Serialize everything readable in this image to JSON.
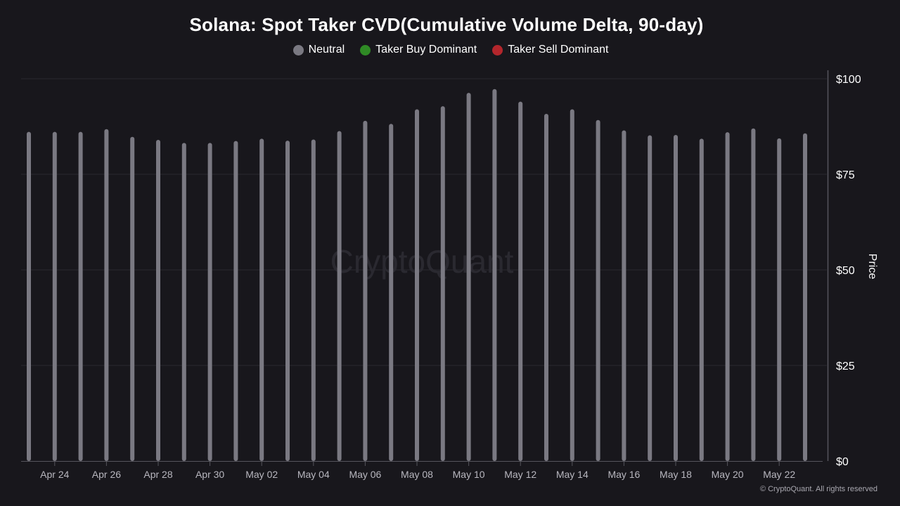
{
  "title": "Solana: Spot Taker CVD(Cumulative Volume Delta, 90-day)",
  "legend": [
    {
      "label": "Neutral",
      "color": "#7a7982"
    },
    {
      "label": "Taker Buy Dominant",
      "color": "#2f8a25"
    },
    {
      "label": "Taker Sell Dominant",
      "color": "#b3262c"
    }
  ],
  "watermark": "CryptoQuant",
  "copyright": "© CryptoQuant. All rights reserved",
  "colors": {
    "background": "#18171c",
    "bar": "#7a7982",
    "grid": "#2a2a31",
    "axis": "#55545c",
    "tick_text": "#b8b7bf"
  },
  "chart_data": {
    "type": "bar",
    "title": "Solana: Spot Taker CVD(Cumulative Volume Delta, 90-day)",
    "ylabel": "Price",
    "ylim": [
      0,
      100
    ],
    "y_ticks": [
      {
        "value": 0,
        "label": "$0"
      },
      {
        "value": 25,
        "label": "$25"
      },
      {
        "value": 50,
        "label": "$50"
      },
      {
        "value": 75,
        "label": "$75"
      },
      {
        "value": 100,
        "label": "$100"
      }
    ],
    "x_tick_labels": [
      "Apr 24",
      "Apr 26",
      "Apr 28",
      "Apr 30",
      "May 02",
      "May 04",
      "May 06",
      "May 08",
      "May 10",
      "May 12",
      "May 14",
      "May 16",
      "May 18",
      "May 20",
      "May 22"
    ],
    "grid": true,
    "legend_position": "top-center",
    "series": [
      {
        "name": "Neutral",
        "color": "#7a7982",
        "x": [
          "Apr 23",
          "Apr 24",
          "Apr 25",
          "Apr 26",
          "Apr 27",
          "Apr 28",
          "Apr 29",
          "Apr 30",
          "May 01",
          "May 02",
          "May 03",
          "May 04",
          "May 05",
          "May 06",
          "May 07",
          "May 08",
          "May 09",
          "May 10",
          "May 11",
          "May 12",
          "May 13",
          "May 14",
          "May 15",
          "May 16",
          "May 17",
          "May 18",
          "May 19",
          "May 20",
          "May 21",
          "May 22",
          "May 23"
        ],
        "values": [
          86.1,
          86.1,
          86.1,
          86.8,
          84.8,
          84.0,
          83.2,
          83.2,
          83.7,
          84.3,
          83.8,
          84.1,
          86.3,
          89.0,
          88.2,
          92.0,
          92.8,
          96.3,
          97.3,
          94.0,
          90.8,
          92.0,
          89.2,
          86.5,
          85.2,
          85.3,
          84.3,
          86.0,
          87.0,
          84.4,
          85.7
        ]
      }
    ]
  }
}
